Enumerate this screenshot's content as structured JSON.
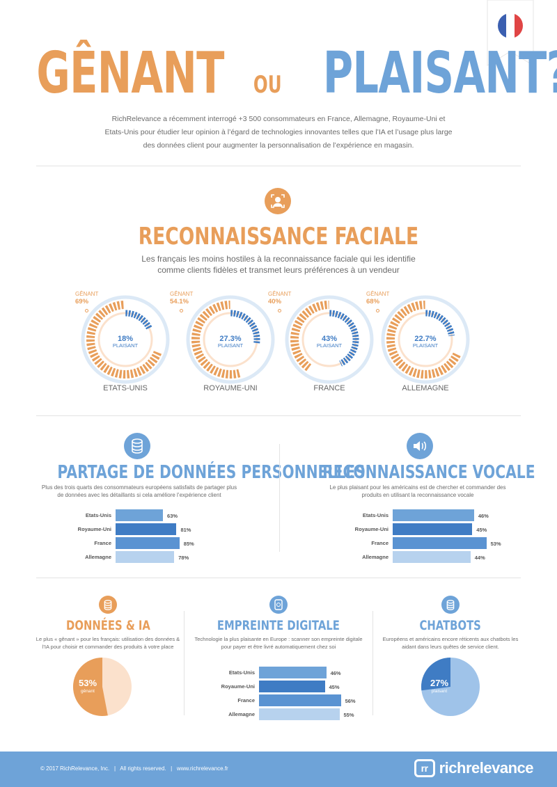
{
  "header": {
    "title_left": "GÊNANT",
    "title_mid": "OU",
    "title_right": "PLAISANT?",
    "intro": "RichRelevance a récemment interrogé +3 500 consommateurs en France, Allemagne, Royaume-Uni et Etats-Unis pour étudier leur opinion à l’égard de technologies innovantes telles que l’IA et l’usage plus large des données client pour augmenter la personnalisation de l’expérience en magasin."
  },
  "colors": {
    "orange": "#e89e5a",
    "blue": "#6ea3d8",
    "dark_blue": "#3f7cc4",
    "light_blue": "#dce9f6",
    "light_orange": "#fbe1cc"
  },
  "facial": {
    "icon": "face-scan-icon",
    "title": "RECONNAISSANCE FACIALE",
    "subtitle": "Les français les moins hostiles à la reconnaissance faciale qui les identifie comme clients fidèles et transmet leurs préférences à un vendeur",
    "genant_label": "GÊNANT",
    "plaisant_label": "PLAISANT"
  },
  "chart_data": [
    {
      "type": "pie",
      "title": "RECONNAISSANCE FACIALE",
      "categories": [
        "ETATS-UNIS",
        "ROYAUME-UNI",
        "FRANCE",
        "ALLEMAGNE"
      ],
      "series": [
        {
          "name": "GÊNANT",
          "values": [
            69,
            54.1,
            40,
            68
          ],
          "labels": [
            "69%",
            "54.1%",
            "40%",
            "68%"
          ]
        },
        {
          "name": "PLAISANT",
          "values": [
            18,
            27.3,
            43,
            22.7
          ],
          "labels": [
            "18%",
            "27.3%",
            "43%",
            "22.7%"
          ]
        }
      ]
    },
    {
      "type": "bar",
      "title": "PARTAGE DE DONNÉES PERSONNELLES",
      "categories": [
        "Etats-Unis",
        "Royaume-Uni",
        "France",
        "Allemagne"
      ],
      "values": [
        63,
        81,
        85,
        78
      ],
      "labels": [
        "63%",
        "81%",
        "85%",
        "78%"
      ]
    },
    {
      "type": "bar",
      "title": "RECONNAISSANCE VOCALE",
      "categories": [
        "Etats-Unis",
        "Royaume-Uni",
        "France",
        "Allemagne"
      ],
      "values": [
        46,
        45,
        53,
        44
      ],
      "labels": [
        "46%",
        "45%",
        "53%",
        "44%"
      ]
    },
    {
      "type": "pie",
      "title": "DONNÉES & IA",
      "values": [
        53
      ],
      "labels": [
        "53%"
      ],
      "series": [
        {
          "name": "gênant",
          "values": [
            53
          ]
        }
      ]
    },
    {
      "type": "bar",
      "title": "EMPREINTE DIGITALE",
      "categories": [
        "Etats-Unis",
        "Royaume-Uni",
        "France",
        "Allemagne"
      ],
      "values": [
        46,
        45,
        56,
        55
      ],
      "labels": [
        "46%",
        "45%",
        "56%",
        "55%"
      ]
    },
    {
      "type": "pie",
      "title": "CHATBOTS",
      "values": [
        27
      ],
      "labels": [
        "27%"
      ],
      "series": [
        {
          "name": "plaisant",
          "values": [
            27
          ]
        }
      ]
    }
  ],
  "data_sharing": {
    "icon": "database-icon",
    "title": "PARTAGE DE DONNÉES PERSONNELLES",
    "subtitle": "Plus des trois quarts des consommateurs européens satisfaits de partager plus de données avec les détaillants si cela améliore l’expérience client"
  },
  "voice": {
    "icon": "speaker-icon",
    "title": "RECONNAISSANCE VOCALE",
    "subtitle": "Le plus plaisant pour les américains est de chercher et commander des produits en utilisant la reconnaissance vocale"
  },
  "ai": {
    "icon": "database-icon",
    "title": "DONNÉES & IA",
    "subtitle": "Le plus « gênant » pour les français: utilisation des données & l’IA pour choisir et commander des produits à votre place",
    "pie_label": "gênant"
  },
  "fingerprint": {
    "icon": "phone-fingerprint-icon",
    "title": "EMPREINTE DIGITALE",
    "subtitle": "Technologie la plus plaisante en Europe : scanner son empreinte digitale pour payer et être livré automatiquement chez soi"
  },
  "chatbots": {
    "icon": "database-icon",
    "title": "CHATBOTS",
    "subtitle": "Européens et américains encore réticents aux chatbots les aidant dans leurs quêtes de service client.",
    "pie_label": "plaisant"
  },
  "footer": {
    "text": "© 2017 RichRelevance, Inc.   |   All rights reserved.   |   www.richrelevance.fr",
    "logo_mark": "rr",
    "logo_text": "richrelevance"
  }
}
